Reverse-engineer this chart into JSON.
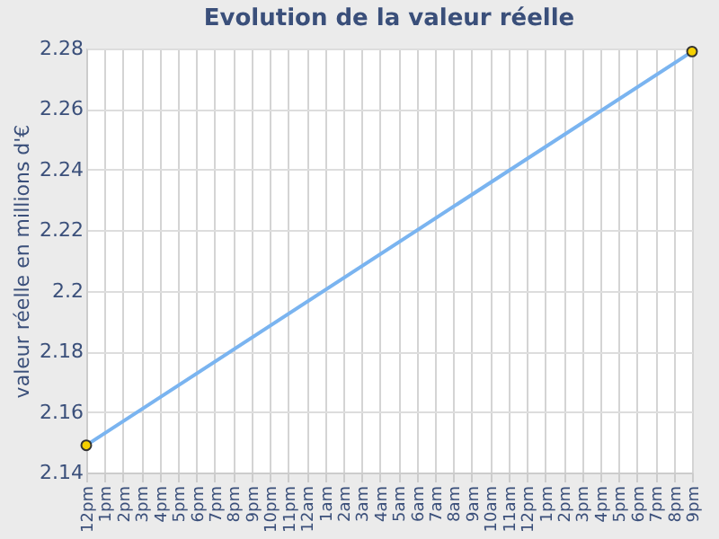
{
  "chart_data": {
    "type": "line",
    "title": "Evolution de la valeur réelle",
    "ylabel": "valeur réelle en millions d'€",
    "categories": [
      "12pm",
      "1pm",
      "2pm",
      "3pm",
      "4pm",
      "5pm",
      "6pm",
      "7pm",
      "8pm",
      "9pm",
      "10pm",
      "11pm",
      "12am",
      "1am",
      "2am",
      "3am",
      "4am",
      "5am",
      "6am",
      "7am",
      "8am",
      "9am",
      "10am",
      "11am",
      "12pm",
      "1pm",
      "2pm",
      "3pm",
      "4pm",
      "5pm",
      "6pm",
      "7pm",
      "8pm",
      "9pm"
    ],
    "series": [
      {
        "color": "#7ab4f0",
        "values": [
          2.149,
          null,
          null,
          null,
          null,
          null,
          null,
          null,
          null,
          null,
          null,
          null,
          null,
          null,
          null,
          null,
          null,
          null,
          null,
          null,
          null,
          null,
          null,
          null,
          null,
          null,
          null,
          null,
          null,
          null,
          null,
          null,
          null,
          2.279
        ]
      }
    ],
    "ylim": [
      2.14,
      2.28
    ],
    "yticks": [
      2.14,
      2.16,
      2.18,
      2.2,
      2.22,
      2.24,
      2.26,
      2.28
    ],
    "grid": true,
    "marker": "circle",
    "line_style": "solid"
  }
}
